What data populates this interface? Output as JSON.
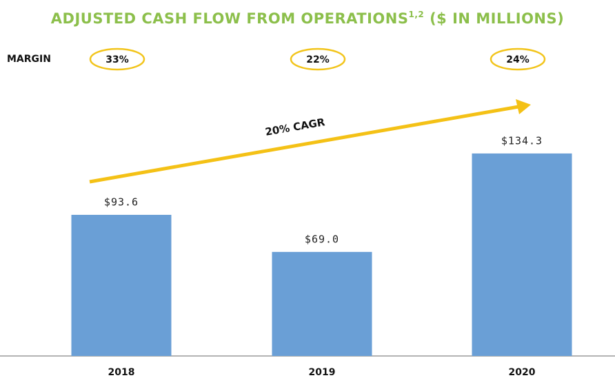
{
  "chart_data": {
    "type": "bar",
    "title": "ADJUSTED CASH FLOW FROM OPERATIONS",
    "title_note": "1,2",
    "unit": "($ IN MILLIONS)",
    "categories": [
      "2018",
      "2019",
      "2020"
    ],
    "values": [
      93.6,
      69.0,
      134.3
    ],
    "value_labels": [
      "$93.6",
      "$69.0",
      "$134.3"
    ],
    "color": "#6a9fd6",
    "margin_title": "MARGIN",
    "margins": [
      33,
      22,
      24
    ],
    "margin_labels": [
      "33%",
      "22%",
      "24%"
    ],
    "margin_color": "#f2c41a",
    "annotation": "20% CAGR",
    "arrow_color": "#f4c116"
  }
}
